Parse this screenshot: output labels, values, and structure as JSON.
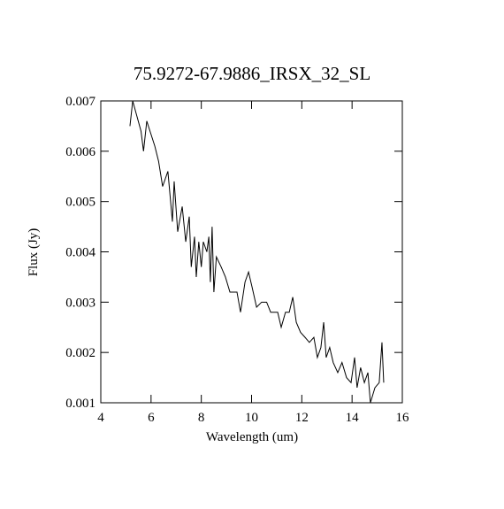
{
  "chart_data": {
    "type": "line",
    "title": "75.9272-67.9886_IRSX_32_SL",
    "x_label": "Wavelength (um)",
    "y_label": "Flux (Jy)",
    "xlim": [
      4,
      16
    ],
    "xticks": [
      4,
      6,
      8,
      10,
      12,
      14,
      16
    ],
    "ylim": [
      0.001,
      0.007
    ],
    "yticks": [
      0.001,
      0.002,
      0.003,
      0.004,
      0.005,
      0.006,
      0.007
    ],
    "series": [
      {
        "color": "#000000",
        "x": [
          5.16,
          5.27,
          5.6,
          5.7,
          5.83,
          6.15,
          6.3,
          6.46,
          6.67,
          6.85,
          6.92,
          7.06,
          7.24,
          7.38,
          7.52,
          7.6,
          7.73,
          7.8,
          7.9,
          8.0,
          8.08,
          8.22,
          8.3,
          8.36,
          8.43,
          8.5,
          8.6,
          8.79,
          8.96,
          9.14,
          9.42,
          9.56,
          9.74,
          9.88,
          10.02,
          10.2,
          10.4,
          10.6,
          10.76,
          11.04,
          11.18,
          11.35,
          11.5,
          11.64,
          11.78,
          11.95,
          12.13,
          12.3,
          12.48,
          12.62,
          12.76,
          12.87,
          12.97,
          13.11,
          13.25,
          13.43,
          13.6,
          13.78,
          13.96,
          14.1,
          14.2,
          14.34,
          14.49,
          14.63,
          14.73,
          14.91,
          15.08,
          15.19,
          15.26
        ],
        "values": [
          0.0065,
          0.007,
          0.0064,
          0.006,
          0.0066,
          0.0061,
          0.0058,
          0.0053,
          0.0056,
          0.0046,
          0.0054,
          0.0044,
          0.0049,
          0.0042,
          0.0047,
          0.0037,
          0.0043,
          0.0035,
          0.0042,
          0.0037,
          0.0042,
          0.004,
          0.0043,
          0.0034,
          0.0045,
          0.0032,
          0.0039,
          0.0037,
          0.0035,
          0.0032,
          0.0032,
          0.0028,
          0.0034,
          0.0036,
          0.0033,
          0.0029,
          0.003,
          0.003,
          0.0028,
          0.0028,
          0.0025,
          0.0028,
          0.0028,
          0.0031,
          0.0026,
          0.0024,
          0.0023,
          0.0022,
          0.0023,
          0.0019,
          0.0021,
          0.0026,
          0.0019,
          0.0021,
          0.0018,
          0.0016,
          0.0018,
          0.0015,
          0.0014,
          0.0019,
          0.0013,
          0.0017,
          0.0014,
          0.0016,
          0.001,
          0.0013,
          0.0014,
          0.0022,
          0.0014
        ]
      }
    ]
  }
}
